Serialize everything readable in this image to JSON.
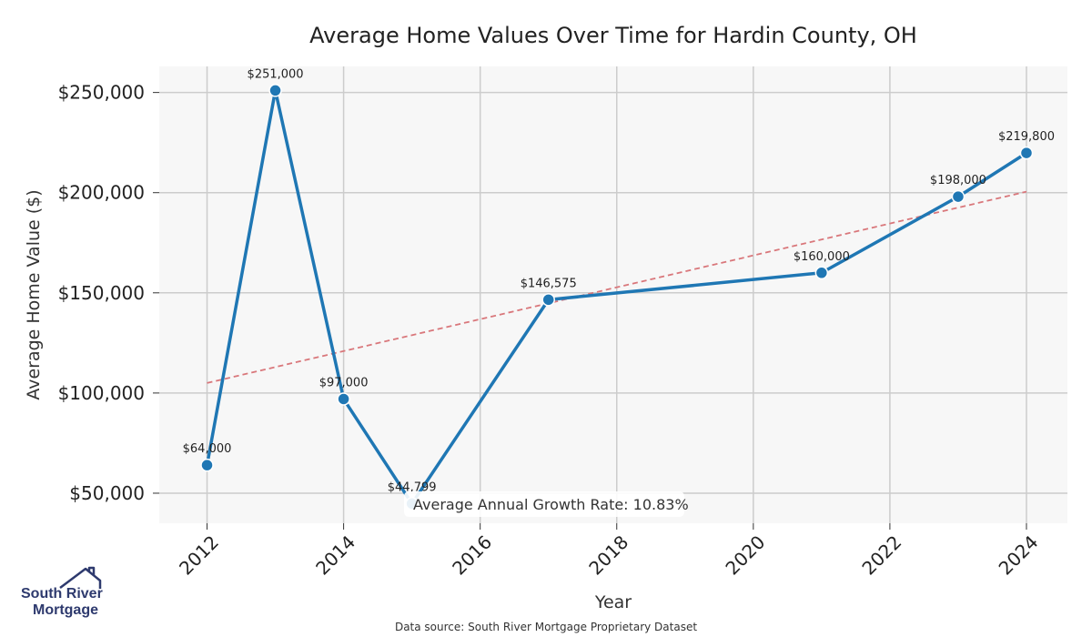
{
  "chart_data": {
    "type": "line",
    "title": "Average Home Values Over Time for Hardin County, OH",
    "xlabel": "Year",
    "ylabel": "Average Home Value ($)",
    "xlim": [
      2011.3,
      2024.6
    ],
    "ylim": [
      35000,
      263000
    ],
    "xticks": [
      2012,
      2014,
      2016,
      2018,
      2020,
      2022,
      2024
    ],
    "xtick_labels": [
      "2012",
      "2014",
      "2016",
      "2018",
      "2020",
      "2022",
      "2024"
    ],
    "yticks": [
      50000,
      100000,
      150000,
      200000,
      250000
    ],
    "ytick_labels": [
      "$50,000",
      "$100,000",
      "$150,000",
      "$200,000",
      "$250,000"
    ],
    "series": [
      {
        "name": "Average Home Value",
        "color": "#1f77b4",
        "points": [
          {
            "x": 2012,
            "y": 64000,
            "label": "$64,000"
          },
          {
            "x": 2013,
            "y": 251000,
            "label": "$251,000"
          },
          {
            "x": 2014,
            "y": 97000,
            "label": "$97,000"
          },
          {
            "x": 2015,
            "y": 44799,
            "label": "$44,799"
          },
          {
            "x": 2017,
            "y": 146575,
            "label": "$146,575"
          },
          {
            "x": 2021,
            "y": 160000,
            "label": "$160,000"
          },
          {
            "x": 2023,
            "y": 198000,
            "label": "$198,000"
          },
          {
            "x": 2024,
            "y": 219800,
            "label": "$219,800"
          }
        ]
      }
    ],
    "trendline": {
      "color": "#d9777b",
      "start": {
        "x": 2012,
        "y": 105000
      },
      "end": {
        "x": 2024,
        "y": 200500
      }
    },
    "annotation": "Average Annual Growth Rate: 10.83%",
    "grid": true,
    "plot_background": "#f7f7f7",
    "grid_color": "#cccccc"
  },
  "footer": {
    "source": "Data source: South River Mortgage Proprietary Dataset",
    "logo_line1": "South River",
    "logo_line2": "Mortgage"
  }
}
